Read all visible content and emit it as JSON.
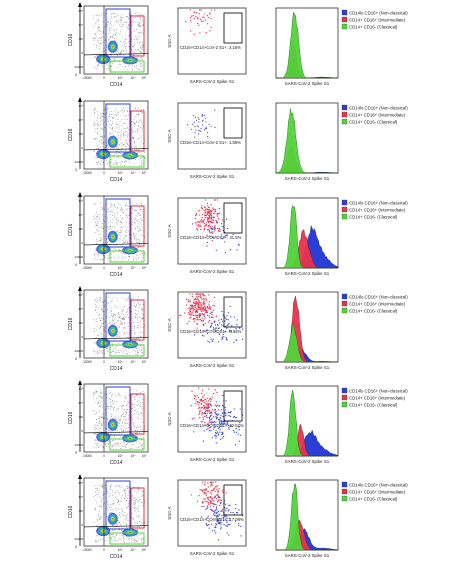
{
  "figure": {
    "legend_labels": {
      "non_classical": "CD14lo CD16+ (Non-classical)",
      "intermediate": "CD14+ CD16+ (Intermediate)",
      "classical": "CD14+ CD16- (Classical)"
    },
    "legend_colors": {
      "non_classical": "#2b3fd6",
      "intermediate": "#e8334a",
      "classical": "#52d43a"
    },
    "rows": [
      {
        "gating": {
          "xlabel": "CD14",
          "ylabel": "CD16",
          "zero_label": "0",
          "tick_labels": [
            "-10000",
            "0",
            "10³",
            "10⁴",
            "10⁵"
          ]
        },
        "spike": {
          "xlabel": "SARS-CoV-2 Spike S1",
          "ylabel": "SSC-A",
          "gate_label": "CD16+CD14+CoV-2 S1+: 3.16%"
        },
        "histogram": {
          "xlabel": "SARS-CoV-2 Spike S1",
          "legend": [
            "CD14lo CD16+ (Non-classical)",
            "CD14+ CD16+ (Intermediate)",
            "CD14+ CD16- (Classical)"
          ]
        }
      },
      {
        "gating": {
          "xlabel": "CD14",
          "ylabel": "CD16",
          "zero_label": "0",
          "tick_labels": [
            "-10000",
            "0",
            "10³",
            "10⁴",
            "10⁵"
          ]
        },
        "spike": {
          "xlabel": "SARS-CoV-2 Spike S1",
          "ylabel": "SSC-A",
          "gate_label": "CD16+CD14+CoV-2 S1+: 1.58%"
        },
        "histogram": {
          "xlabel": "SARS-CoV-2 Spike S1",
          "legend": [
            "CD14lo CD16+ (Non-classical)",
            "CD14+ CD16+ (Intermediate)",
            "CD14+ CD16- (Classical)"
          ]
        }
      },
      {
        "gating": {
          "xlabel": "CD14",
          "ylabel": "CD16",
          "zero_label": "0",
          "tick_labels": [
            "-10000",
            "0",
            "10³",
            "10⁴",
            "10⁵"
          ]
        },
        "spike": {
          "xlabel": "SARS-CoV-2 Spike S1",
          "ylabel": "SSC-A",
          "gate_label": "CD16+CD14+COVIDS1+: 41.5%"
        },
        "histogram": {
          "xlabel": "SARS-CoV-2 Spike S1",
          "legend": [
            "CD14lo CD16+ (Non-classical)",
            "CD14+ CD16+ (Intermediate)",
            "CD14+ CD16- (Classical)"
          ]
        }
      },
      {
        "gating": {
          "xlabel": "CD14",
          "ylabel": "CD16",
          "zero_label": "0",
          "tick_labels": [
            "-10000",
            "0",
            "10³",
            "10⁴",
            "10⁵"
          ]
        },
        "spike": {
          "xlabel": "SARS-CoV-2 Spike S1",
          "ylabel": "SSC-A",
          "gate_label": "CD16+CD14+COVIDS1+: 4.65%"
        },
        "histogram": {
          "xlabel": "SARS-CoV-2 Spike S1",
          "legend": [
            "CD14lo CD16+ (Non-classical)",
            "CD14+ CD16+ (Intermediate)",
            "CD14+ CD16- (Classical)"
          ]
        }
      },
      {
        "gating": {
          "xlabel": "CD14",
          "ylabel": "CD16",
          "zero_label": "0",
          "tick_labels": [
            "-10000",
            "0",
            "10³",
            "10⁴",
            "10⁵"
          ]
        },
        "spike": {
          "xlabel": "SARS-CoV-2 Spike S1",
          "ylabel": "SSC-A",
          "gate_label": "CD16+CD14+COVIDS1+: 22.57%"
        },
        "histogram": {
          "xlabel": "SARS-CoV-2 Spike S1",
          "legend": [
            "CD14lo CD16+ (Non-classical)",
            "CD14+ CD16+ (Intermediate)",
            "CD14+ CD16- (Classical)"
          ]
        }
      },
      {
        "gating": {
          "xlabel": "CD14",
          "ylabel": "CD16",
          "zero_label": "0",
          "tick_labels": [
            "-10000",
            "0",
            "10³",
            "10⁴",
            "10⁵"
          ]
        },
        "spike": {
          "xlabel": "SARS-CoV-2 Spike S1",
          "ylabel": "SSC-A",
          "gate_label": "CD16+CD14+COVIDS1+: 17.09%"
        },
        "histogram": {
          "xlabel": "SARS-CoV-2 Spike S1",
          "legend": [
            "CD14lo CD16+ (Non-classical)",
            "CD14+ CD16+ (Intermediate)",
            "CD14+ CD16- (Classical)"
          ]
        }
      }
    ]
  }
}
